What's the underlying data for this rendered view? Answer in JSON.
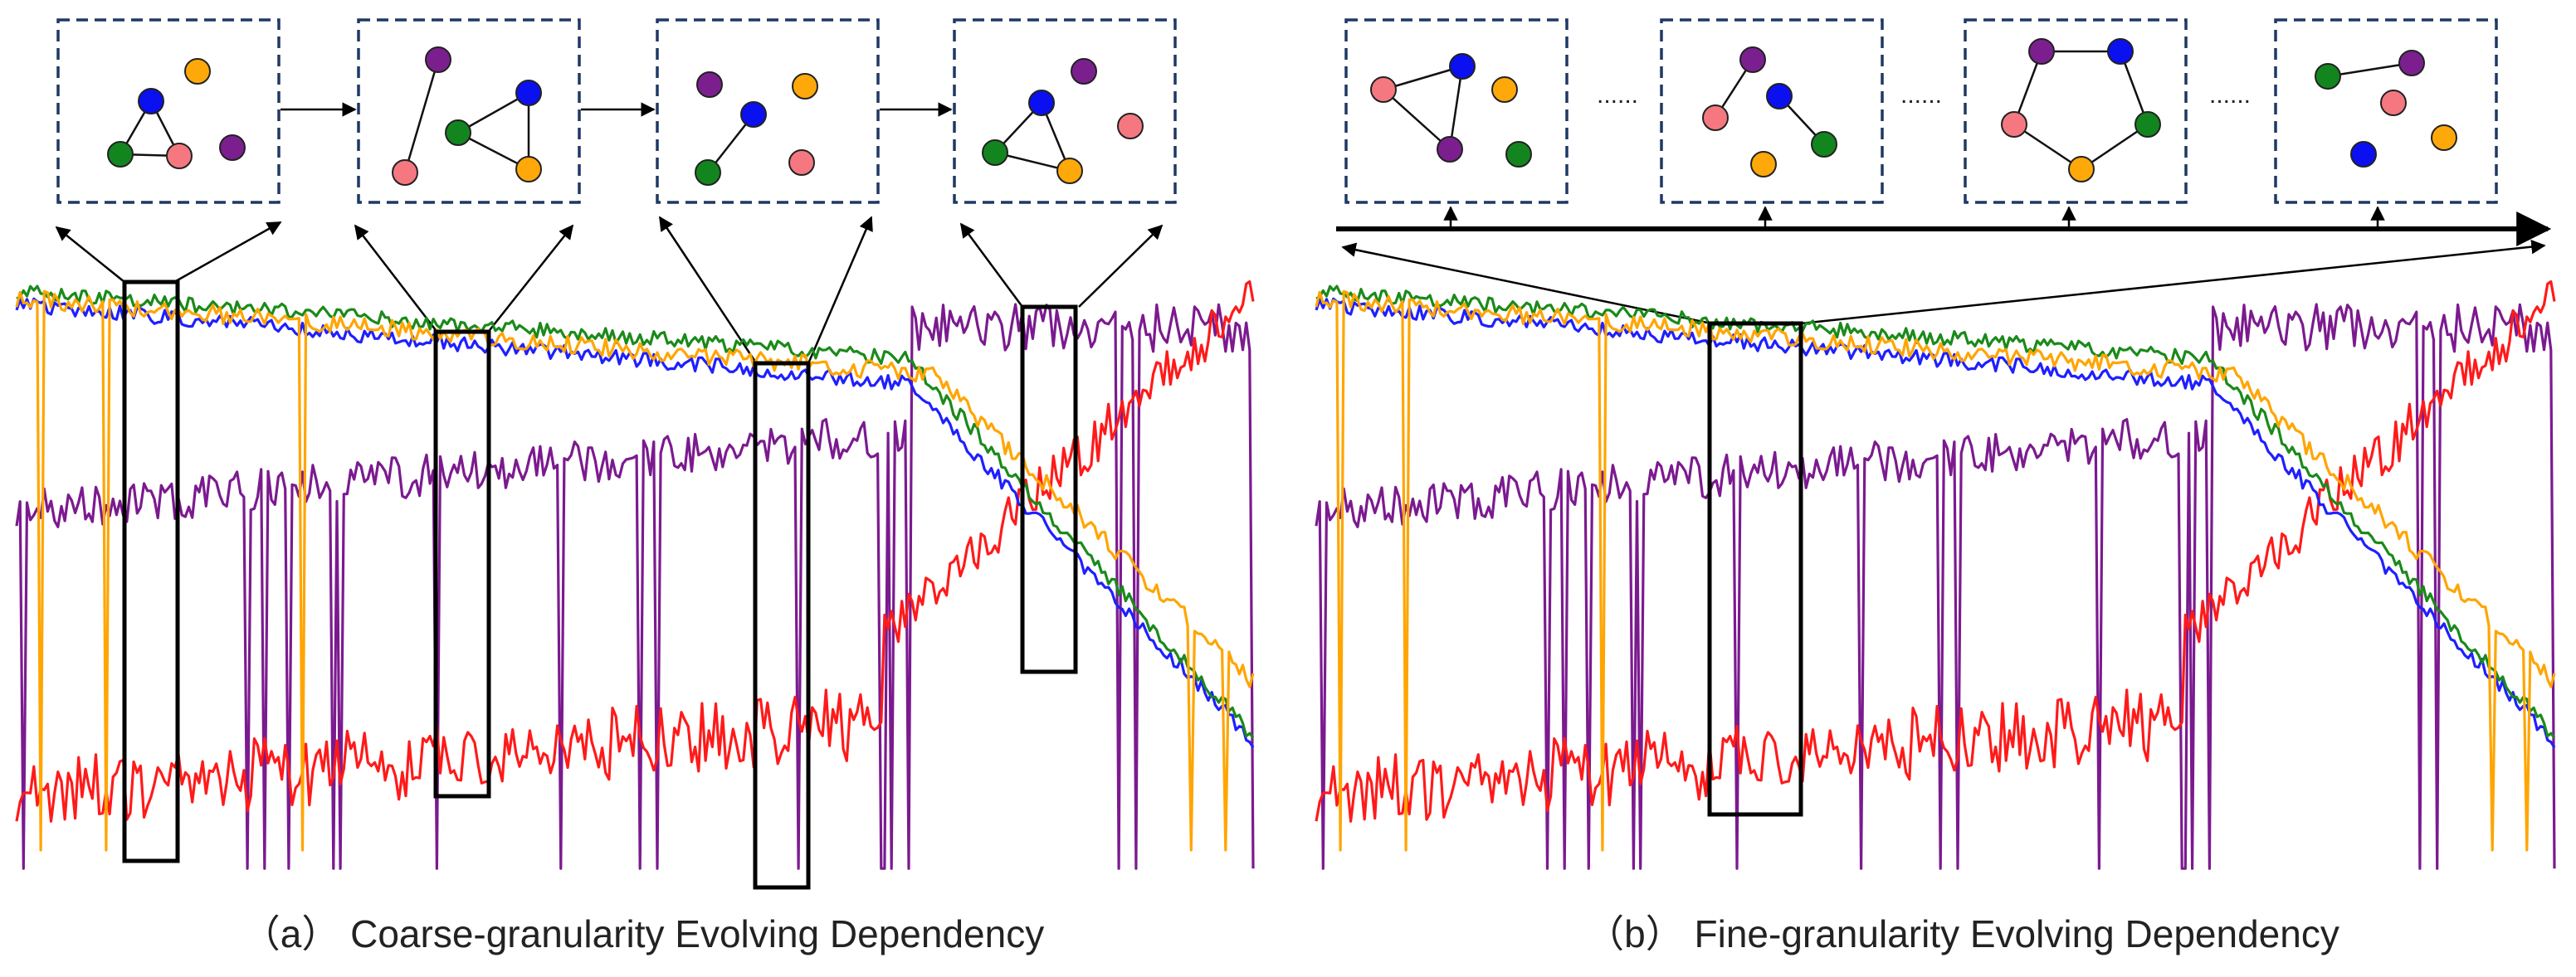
{
  "figure": {
    "panel_a": {
      "caption": "（a）  Coarse-granularity Evolving Dependency",
      "graph_count": 4,
      "window_count": 4
    },
    "panel_b": {
      "caption": "（b）  Fine-granularity Evolving Dependency",
      "graph_count": 4,
      "window_count": 1,
      "ellipsis": "......"
    },
    "series_colors": {
      "blue": "#1f1fff",
      "orange": "#ffa500",
      "green": "#1a8a1a",
      "purple": "#7b1a8f",
      "red": "#ff1a1a"
    },
    "node_colors": {
      "blue": "#0a10f0",
      "orange": "#ffa80a",
      "green": "#13851f",
      "purple": "#7b1f8f",
      "pink": "#f57880"
    }
  }
}
